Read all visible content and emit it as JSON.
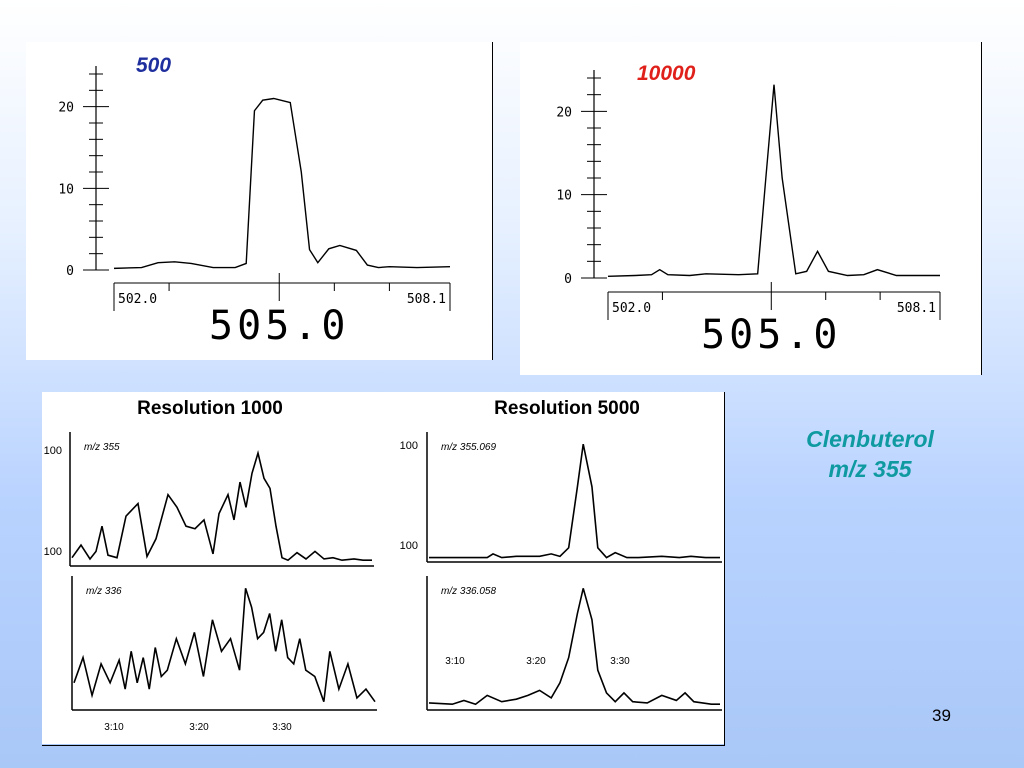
{
  "slide": {
    "compound_name": "Clenbuterol",
    "compound_mz": "m/z 355",
    "page_number": "39"
  },
  "colors": {
    "label_500": "#1f2f9e",
    "label_10000": "#e0201a",
    "compound": "#0e9aa0"
  },
  "chart_data": [
    {
      "type": "line",
      "resolution_label": "500",
      "x_center_label": "505.0",
      "xlim": [
        502.0,
        508.1
      ],
      "x_tick_labels": [
        "502.0",
        "508.1"
      ],
      "ylim": [
        0,
        24
      ],
      "y_tick_labels": [
        "0",
        "10",
        "20"
      ],
      "series": [
        {
          "x": [
            502.0,
            502.5,
            502.8,
            503.1,
            503.4,
            503.8,
            504.2,
            504.4,
            504.55,
            504.7,
            504.9,
            505.2,
            505.4,
            505.55,
            505.7,
            505.9,
            506.1,
            506.4,
            506.6,
            506.8,
            507.0,
            507.5,
            508.1
          ],
          "y": [
            0.2,
            0.3,
            0.9,
            1.0,
            0.8,
            0.3,
            0.3,
            0.8,
            19.5,
            20.8,
            21.0,
            20.5,
            12.0,
            2.5,
            0.9,
            2.6,
            3.0,
            2.4,
            0.6,
            0.3,
            0.4,
            0.3,
            0.4
          ]
        }
      ]
    },
    {
      "type": "line",
      "resolution_label": "10000",
      "x_center_label": "505.0",
      "xlim": [
        502.0,
        508.1
      ],
      "x_tick_labels": [
        "502.0",
        "508.1"
      ],
      "ylim": [
        0,
        24
      ],
      "y_tick_labels": [
        "0",
        "10",
        "20"
      ],
      "series": [
        {
          "x": [
            502.0,
            502.5,
            502.8,
            502.95,
            503.1,
            503.5,
            503.8,
            504.4,
            504.75,
            504.9,
            505.05,
            505.2,
            505.45,
            505.65,
            505.85,
            506.05,
            506.4,
            506.7,
            506.95,
            507.3,
            508.1
          ],
          "y": [
            0.2,
            0.3,
            0.4,
            1.0,
            0.4,
            0.3,
            0.5,
            0.4,
            0.5,
            12.0,
            23.2,
            12.0,
            0.5,
            0.8,
            3.2,
            0.8,
            0.3,
            0.4,
            1.0,
            0.3,
            0.3
          ]
        }
      ]
    },
    {
      "type": "line",
      "title": "Resolution 1000",
      "trace_label": "m/z 355",
      "y_tick_labels": [
        "100",
        "100"
      ],
      "series": [
        {
          "x": [
            0,
            3,
            6,
            8,
            10,
            12,
            15,
            18,
            22,
            25,
            28,
            32,
            35,
            38,
            41,
            44,
            47,
            49,
            52,
            54,
            56,
            58,
            60,
            62,
            64,
            66,
            68,
            70,
            72,
            75,
            78,
            81,
            84,
            87,
            90,
            94,
            97,
            100
          ],
          "y": [
            5,
            15,
            4,
            10,
            30,
            7,
            5,
            38,
            48,
            6,
            20,
            55,
            45,
            30,
            28,
            35,
            8,
            40,
            55,
            35,
            65,
            45,
            72,
            88,
            68,
            60,
            30,
            5,
            3,
            9,
            4,
            10,
            4,
            5,
            3,
            4,
            3,
            3
          ]
        }
      ]
    },
    {
      "type": "line",
      "title": "Resolution 5000",
      "trace_label": "m/z 355.069",
      "y_tick_labels": [
        "100",
        "100"
      ],
      "series": [
        {
          "x": [
            0,
            20,
            22,
            25,
            30,
            38,
            42,
            45,
            48,
            51,
            53,
            56,
            58,
            61,
            64,
            68,
            72,
            80,
            86,
            90,
            95,
            100
          ],
          "y": [
            2,
            2,
            5,
            2,
            3,
            3,
            5,
            3,
            10,
            60,
            95,
            60,
            10,
            2,
            6,
            2,
            2,
            3,
            2,
            3,
            2,
            2
          ]
        }
      ]
    },
    {
      "type": "line",
      "trace_label": "m/z 336",
      "x_tick_labels": [
        "3:10",
        "3:20",
        "3:30"
      ],
      "series": [
        {
          "x": [
            0,
            3,
            6,
            9,
            12,
            15,
            17,
            19,
            21,
            23,
            25,
            27,
            29,
            31,
            34,
            37,
            40,
            43,
            46,
            49,
            52,
            55,
            57,
            59,
            61,
            63,
            65,
            67,
            69,
            71,
            73,
            75,
            77,
            80,
            83,
            85,
            88,
            91,
            94,
            97,
            100
          ],
          "y": [
            20,
            40,
            10,
            35,
            20,
            38,
            15,
            45,
            20,
            40,
            15,
            48,
            25,
            30,
            55,
            35,
            60,
            25,
            70,
            45,
            55,
            30,
            95,
            80,
            55,
            60,
            75,
            45,
            70,
            40,
            35,
            55,
            30,
            25,
            5,
            45,
            15,
            35,
            8,
            15,
            5
          ]
        }
      ]
    },
    {
      "type": "line",
      "trace_label": "m/z 336.058",
      "x_tick_labels": [
        "3:10",
        "3:20",
        "3:30"
      ],
      "series": [
        {
          "x": [
            0,
            8,
            12,
            16,
            20,
            25,
            30,
            34,
            38,
            42,
            45,
            48,
            51,
            53,
            56,
            58,
            61,
            64,
            67,
            70,
            75,
            80,
            85,
            88,
            91,
            94,
            97,
            100
          ],
          "y": [
            4,
            3,
            6,
            3,
            10,
            5,
            7,
            10,
            14,
            8,
            20,
            40,
            75,
            95,
            70,
            30,
            12,
            5,
            12,
            5,
            4,
            10,
            6,
            12,
            5,
            4,
            3,
            3
          ]
        }
      ]
    }
  ]
}
